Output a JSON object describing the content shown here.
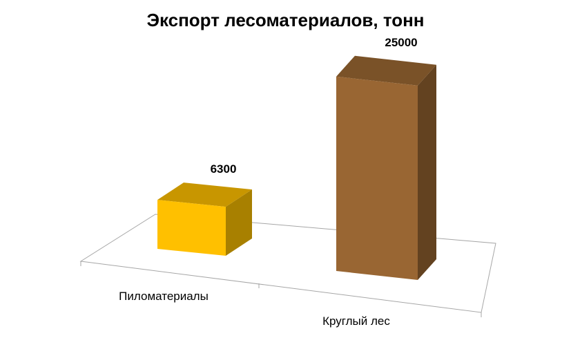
{
  "chart_data": {
    "type": "bar",
    "title": "Экспорт лесоматериалов, тонн",
    "categories": [
      "Пиломатериалы",
      "Круглый лес"
    ],
    "values": [
      6300,
      25000
    ],
    "data_labels": [
      "6300",
      "25000"
    ],
    "style": "3d-column",
    "colors": {
      "Пиломатериалы": {
        "front": "#FFC000",
        "top": "#C89600",
        "side": "#A88000"
      },
      "Круглый лес": {
        "front": "#996633",
        "top": "#7A5228",
        "side": "#634220"
      }
    },
    "grid": false,
    "legend": "none"
  }
}
